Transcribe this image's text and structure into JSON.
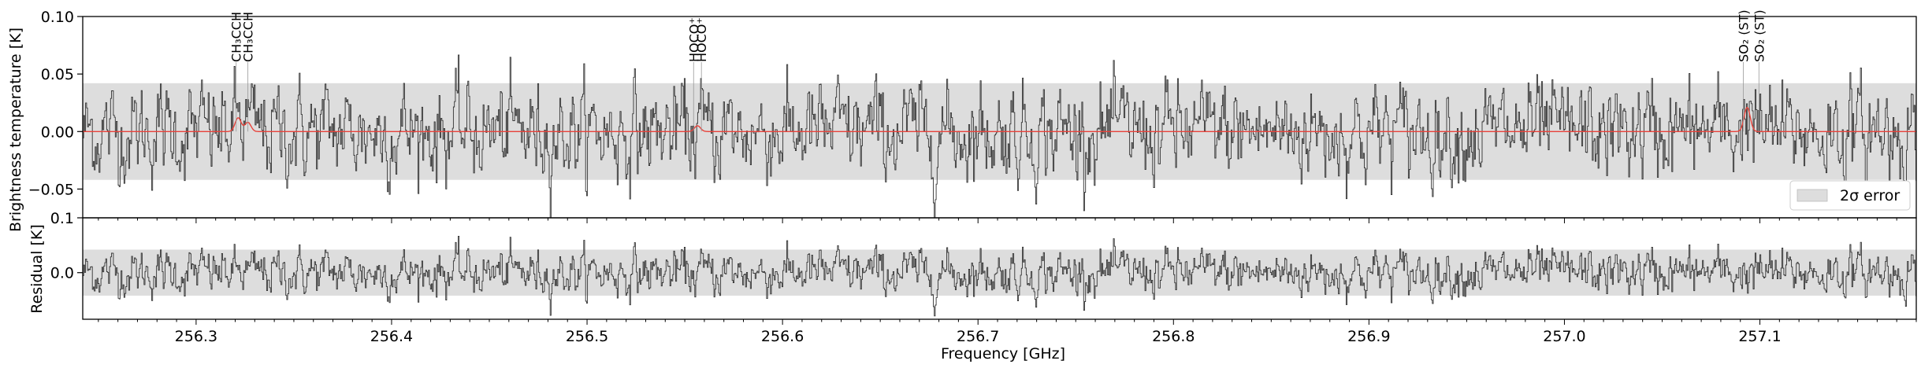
{
  "chart_data": [
    {
      "type": "line",
      "panel": "spectrum",
      "ylabel": "Brightness temperature [K]",
      "xlim": [
        256.242,
        257.18
      ],
      "ylim": [
        -0.075,
        0.1
      ],
      "yticks": [
        -0.05,
        0.0,
        0.05,
        0.1
      ],
      "ytick_labels": [
        "−0.05",
        "0.00",
        "0.05",
        "0.10"
      ],
      "grid": false,
      "error_band": {
        "label": "2σ error",
        "min": -0.042,
        "max": 0.042,
        "color": "#dddddd"
      },
      "legend": {
        "position": "bottom-right",
        "entries": [
          "2σ error"
        ]
      },
      "series": [
        {
          "kind": "observed",
          "color": "#333333",
          "noise_sigma": 0.021,
          "x_step": 0.00049
        },
        {
          "kind": "model",
          "color": "#e8423a",
          "baseline": 0.0,
          "peaks": [
            {
              "x": 256.3215,
              "amplitude": 0.012
            },
            {
              "x": 256.3265,
              "amplitude": 0.008
            },
            {
              "x": 256.5565,
              "amplitude": 0.005
            },
            {
              "x": 257.0935,
              "amplitude": 0.021
            }
          ]
        }
      ],
      "line_markers": [
        {
          "x": 256.3205,
          "label": "CH₃CCH",
          "text": "CH3CCH"
        },
        {
          "x": 256.3265,
          "label": "CH₃CCH",
          "text": "CH3CCH"
        },
        {
          "x": 256.5545,
          "label": "HOCO⁺",
          "text": "HOCO+"
        },
        {
          "x": 256.5585,
          "label": "HOCO⁺",
          "text": "HOCO+"
        },
        {
          "x": 257.0915,
          "label": "SO₂ (ST)",
          "text": "SO2 (ST)"
        },
        {
          "x": 257.0995,
          "label": "SO₂ (ST)",
          "text": "SO2 (ST)"
        }
      ]
    },
    {
      "type": "line",
      "panel": "residual",
      "ylabel": "Residual [K]",
      "xlabel": "Frequency [GHz]",
      "xlim": [
        256.242,
        257.18
      ],
      "ylim": [
        -0.085,
        0.1
      ],
      "yticks": [
        0.0,
        0.1
      ],
      "ytick_labels": [
        "0.0",
        "0.1"
      ],
      "xticks": [
        256.3,
        256.4,
        256.5,
        256.6,
        256.7,
        256.8,
        256.9,
        257.0,
        257.1
      ],
      "xtick_labels": [
        "256.3",
        "256.4",
        "256.5",
        "256.6",
        "256.7",
        "256.8",
        "256.9",
        "257.0",
        "257.1"
      ],
      "error_band": {
        "min": -0.042,
        "max": 0.042,
        "color": "#dddddd"
      },
      "series": [
        {
          "kind": "residual",
          "color": "#333333",
          "noise_sigma": 0.021,
          "x_step": 0.00049
        }
      ]
    }
  ]
}
